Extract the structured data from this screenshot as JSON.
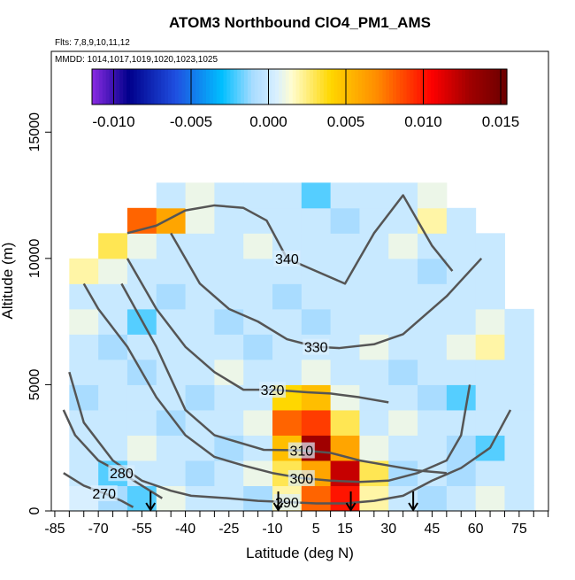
{
  "chart_data": {
    "type": "curtain",
    "title": "ATOM3 Northbound ClO4_PM1_AMS",
    "subtitle": "Flts: 7,8,9,10,11,12",
    "note": "MMDD: 1014,1017,1019,1020,1023,1025",
    "xlabel": "Latitude (deg N)",
    "ylabel": "Altitude (m)",
    "xlim": [
      -86.2,
      85.1
    ],
    "ylim": [
      0,
      18200
    ],
    "xticks": [
      -85,
      -70,
      -55,
      -40,
      -25,
      -10,
      5,
      15,
      30,
      45,
      60,
      75
    ],
    "xminorticks": [
      -80,
      -75,
      -65,
      -60,
      -50,
      -45,
      -35,
      -30,
      -20,
      -15,
      -5,
      0,
      10,
      20,
      25,
      35,
      40,
      50,
      55,
      65,
      70,
      80,
      85
    ],
    "yticks": [
      0,
      5000,
      10000,
      15000
    ],
    "lat_edges": [
      -80,
      -70,
      -60,
      -50,
      -40,
      -30,
      -20,
      -10,
      0,
      10,
      20,
      30,
      40,
      50,
      60,
      70,
      80
    ],
    "alt_edges": [
      0,
      1000,
      2000,
      3000,
      4000,
      5000,
      6000,
      7000,
      8000,
      9000,
      10000,
      11000,
      12000,
      13000
    ],
    "z": [
      [
        0.0005,
        -0.001,
        -0.002,
        0.001,
        0,
        0,
        -0.001,
        0.002,
        0.008,
        0.01,
        0.002,
        0,
        -0.001,
        0,
        0.001,
        0
      ],
      [
        0,
        -0.002,
        0,
        0,
        -0.001,
        0,
        0.001,
        0.003,
        0.006,
        0.012,
        0.003,
        -0.001,
        0,
        -0.001,
        0,
        0
      ],
      [
        0,
        0,
        0.001,
        0,
        0,
        -0.001,
        0,
        0.005,
        0.013,
        0.006,
        0.001,
        0,
        0,
        -0.001,
        -0.002,
        0
      ],
      [
        0,
        0,
        0,
        -0.001,
        0,
        0,
        0.001,
        0.008,
        0.009,
        0.003,
        0,
        0.001,
        0,
        0,
        0,
        0
      ],
      [
        -0.001,
        0,
        0,
        0,
        -0.001,
        0,
        0,
        0.004,
        0.005,
        0.001,
        0,
        0,
        -0.001,
        -0.002,
        0,
        0
      ],
      [
        0,
        0,
        -0.001,
        0,
        0,
        0.001,
        0,
        0,
        0.001,
        0,
        0,
        -0.001,
        0,
        0,
        0,
        0
      ],
      [
        0,
        -0.001,
        0,
        0,
        0,
        0,
        -0.001,
        0,
        0,
        0,
        0.001,
        0,
        0,
        0.001,
        0.002,
        0
      ],
      [
        0.001,
        0,
        -0.002,
        0,
        0,
        -0.001,
        0,
        0,
        -0.001,
        0,
        0,
        0,
        0,
        0,
        0.001,
        0
      ],
      [
        0,
        0,
        0,
        -0.001,
        0,
        0,
        0,
        -0.001,
        0,
        0,
        0,
        0,
        0,
        0,
        0,
        null
      ],
      [
        0.002,
        0.001,
        0,
        0,
        0,
        0,
        0,
        0,
        0,
        0,
        0,
        0,
        -0.001,
        0,
        0,
        null
      ],
      [
        null,
        0.003,
        0.001,
        0,
        0,
        0,
        0.001,
        0,
        0,
        0,
        0,
        0.001,
        0,
        0,
        0,
        null
      ],
      [
        null,
        null,
        0.008,
        0.006,
        0.001,
        0,
        0,
        0,
        0,
        -0.001,
        0,
        0,
        0.002,
        0,
        null,
        null
      ],
      [
        null,
        null,
        null,
        0,
        0.001,
        0,
        0,
        0,
        -0.002,
        0,
        0,
        0,
        0.001,
        null,
        null,
        null
      ]
    ],
    "clim": [
      -0.0114,
      0.0154
    ],
    "cticks": [
      {
        "value": -0.01,
        "label": "-0.010"
      },
      -0.005,
      {
        "value": 0,
        "label": "0.000"
      },
      0.005,
      {
        "value": 0.01,
        "label": "0.010"
      },
      {
        "value": 0.015,
        "label": "0.015"
      }
    ],
    "colorscale": [
      {
        "value": -0.0114,
        "color": "#8a2be2"
      },
      {
        "value": -0.009,
        "color": "#00008b"
      },
      {
        "value": -0.006,
        "color": "#1f4fe0"
      },
      {
        "value": -0.003,
        "color": "#00bfff"
      },
      {
        "value": -0.001,
        "color": "#a9dcff"
      },
      {
        "value": 0.0005,
        "color": "#d8efff"
      },
      {
        "value": 0.0015,
        "color": "#fffdd0"
      },
      {
        "value": 0.004,
        "color": "#ffd700"
      },
      {
        "value": 0.007,
        "color": "#ff8c00"
      },
      {
        "value": 0.0105,
        "color": "#ff0000"
      },
      {
        "value": 0.013,
        "color": "#a00000"
      },
      {
        "value": 0.0154,
        "color": "#6b0000"
      }
    ],
    "contour_color": "#555555",
    "contours": [
      {
        "level": 340,
        "lat": [
          -60,
          -50,
          -40,
          -30,
          -20,
          -12,
          -5,
          5,
          15,
          25,
          35,
          45,
          52
        ],
        "alt": [
          11000,
          11300,
          11900,
          12100,
          12000,
          11500,
          10000,
          9500,
          9000,
          11000,
          12500,
          10500,
          9500
        ]
      },
      {
        "level": 330,
        "lat": [
          -45,
          -35,
          -25,
          -15,
          -5,
          5,
          13,
          25,
          35,
          50,
          62
        ],
        "alt": [
          11000,
          9000,
          8000,
          7500,
          6800,
          6500,
          6450,
          6600,
          7000,
          8500,
          10000
        ]
      },
      {
        "level": 320,
        "lat": [
          -60,
          -50,
          -40,
          -30,
          -20,
          -10,
          2,
          10,
          20,
          30
        ],
        "alt": [
          10000,
          8000,
          6500,
          5500,
          4800,
          4800,
          4700,
          4650,
          4500,
          4300
        ]
      },
      {
        "level": 310,
        "lat": [
          -62,
          -50,
          -40,
          -30,
          -13,
          0,
          10,
          20,
          30,
          40,
          50
        ],
        "alt": [
          9000,
          6500,
          4000,
          3000,
          2420,
          2400,
          2300,
          2000,
          1800,
          1600,
          1500
        ]
      },
      {
        "level": 300,
        "lat": [
          -75,
          -70,
          -60,
          -50,
          -40,
          -30,
          -20,
          -10,
          0,
          10,
          20,
          30,
          40,
          50,
          55,
          58
        ],
        "alt": [
          9000,
          8000,
          6500,
          4500,
          3000,
          2140,
          1800,
          1500,
          1300,
          1200,
          1150,
          1200,
          1500,
          2000,
          3000,
          5000
        ]
      },
      {
        "level": 290,
        "lat": [
          -80,
          -75,
          -65,
          -55,
          -45,
          -38,
          -25,
          -15,
          -5,
          5,
          15,
          25,
          35,
          45,
          55,
          65,
          72
        ],
        "alt": [
          5500,
          3500,
          2000,
          1200,
          800,
          600,
          500,
          400,
          350,
          300,
          300,
          400,
          600,
          1200,
          1700,
          2500,
          4000
        ]
      },
      {
        "level": 280,
        "lat": [
          -82,
          -78,
          -70,
          -62,
          -55,
          -48
        ],
        "alt": [
          4000,
          3000,
          2000,
          1500,
          1000,
          500
        ]
      },
      {
        "level": 270,
        "lat": [
          -82,
          -75,
          -68,
          -62,
          -58
        ],
        "alt": [
          1500,
          1000,
          700,
          400,
          150
        ]
      }
    ],
    "flight_lat": [
      -52,
      -8,
      17,
      38.5
    ]
  }
}
